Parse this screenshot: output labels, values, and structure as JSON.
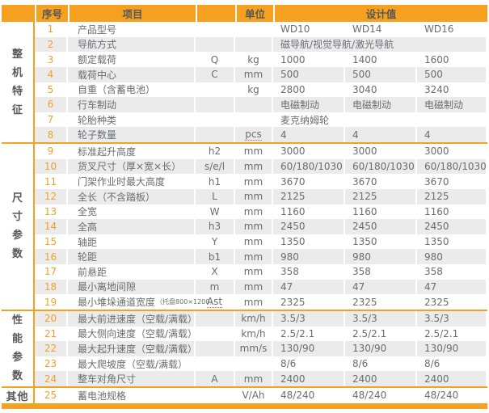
{
  "colors": {
    "accent_orange": "#F5A11F",
    "stripe_gray": "#EBEBEC",
    "text_gray": "#6B6C6E",
    "header_text": "#54555A",
    "row_number_orange": "#F2A024",
    "spellcheck_red": "#E05A4A"
  },
  "header": {
    "no": "序号",
    "item": "项目",
    "symbol": "",
    "unit": "单位",
    "design": "设计值"
  },
  "table": {
    "groups": [
      {
        "label": "整机特征",
        "vertical": true,
        "rows": [
          {
            "no": "1",
            "item": "产品型号",
            "symbol": "",
            "unit": "",
            "values": [
              "WD10",
              "WD14",
              "WD16"
            ]
          },
          {
            "no": "2",
            "item": "导航方式",
            "symbol": "",
            "unit": "",
            "merged": true,
            "values": [
              "磁导航/视觉导航/激光导航"
            ]
          },
          {
            "no": "3",
            "item": "额定载荷",
            "symbol": "Q",
            "unit": "kg",
            "values": [
              "1000",
              "1400",
              "1600"
            ]
          },
          {
            "no": "4",
            "item": "载荷中心",
            "symbol": "C",
            "unit": "mm",
            "values": [
              "500",
              "500",
              "500"
            ]
          },
          {
            "no": "5",
            "item": "自重（含蓄电池）",
            "symbol": "",
            "unit": "kg",
            "values": [
              "2800",
              "3040",
              "3240"
            ]
          },
          {
            "no": "6",
            "item": "行车制动",
            "symbol": "",
            "unit": "",
            "values": [
              "电磁制动",
              "电磁制动",
              "电磁制动"
            ]
          },
          {
            "no": "7",
            "item": "轮胎种类",
            "symbol": "",
            "unit": "",
            "merged": true,
            "values": [
              "麦克纳姆轮"
            ]
          },
          {
            "no": "8",
            "item": "轮子数量",
            "symbol": "",
            "unit": "pcs",
            "unit_mark": true,
            "values": [
              "4",
              "4",
              "4"
            ]
          }
        ]
      },
      {
        "label": "尺寸参数",
        "vertical": true,
        "rows": [
          {
            "no": "9",
            "item": "标准起升高度",
            "symbol": "h2",
            "unit": "mm",
            "values": [
              "3000",
              "3000",
              "3000"
            ]
          },
          {
            "no": "10",
            "item": "货叉尺寸（厚×宽×长）",
            "symbol": "s/e/l",
            "unit": "mm",
            "values": [
              "60/180/1030",
              "60/180/1030",
              "60/180/1030"
            ]
          },
          {
            "no": "11",
            "item": "门架作业时最大高度",
            "symbol": "h1",
            "unit": "mm",
            "values": [
              "3670",
              "3670",
              "3670"
            ]
          },
          {
            "no": "12",
            "item": "全长（不含踏板）",
            "symbol": "L",
            "unit": "mm",
            "values": [
              "2125",
              "2125",
              "2125"
            ]
          },
          {
            "no": "13",
            "item": "全宽",
            "symbol": "W",
            "unit": "mm",
            "values": [
              "1160",
              "1160",
              "1160"
            ]
          },
          {
            "no": "14",
            "item": "全高",
            "symbol": "h3",
            "unit": "mm",
            "values": [
              "2450",
              "2450",
              "2450"
            ]
          },
          {
            "no": "15",
            "item": "轴距",
            "symbol": "Y",
            "unit": "mm",
            "values": [
              "1350",
              "1350",
              "1350"
            ]
          },
          {
            "no": "16",
            "item": "轮距",
            "symbol": "b1",
            "unit": "mm",
            "values": [
              "980",
              "980",
              "980"
            ]
          },
          {
            "no": "17",
            "item": "前悬距",
            "symbol": "X",
            "unit": "mm",
            "values": [
              "358",
              "358",
              "358"
            ]
          },
          {
            "no": "18",
            "item": "最小离地间隙",
            "symbol": "m",
            "unit": "mm",
            "values": [
              "47",
              "47",
              "47"
            ]
          },
          {
            "no": "19",
            "item": "最小堆垛通道宽度",
            "note": "（托盘800×1200）",
            "symbol": "Ast",
            "symbol_mark": true,
            "unit": "mm",
            "values": [
              "2325",
              "2325",
              "2325"
            ]
          }
        ]
      },
      {
        "label": "性能参数",
        "vertical": true,
        "rows": [
          {
            "no": "20",
            "item": "最大前进速度（空载/满载）",
            "symbol": "",
            "unit": "km/h",
            "values": [
              "3.5/3",
              "3.5/3",
              "3.5/3"
            ]
          },
          {
            "no": "21",
            "item": "最大侧向速度（空载/满载）",
            "symbol": "",
            "unit": "km/h",
            "values": [
              "2.5/2.1",
              "2.5/2.1",
              "2.5/2.1"
            ]
          },
          {
            "no": "22",
            "item": "最大起升速度（空载/满载）",
            "symbol": "",
            "unit": "mm/s",
            "values": [
              "130/90",
              "130/90",
              "130/90"
            ]
          },
          {
            "no": "23",
            "item": "最大爬坡度（空载/满载）",
            "symbol": "",
            "unit": "",
            "values": [
              "8/6",
              "8/6",
              "8/6"
            ]
          },
          {
            "no": "24",
            "item": "整车对角尺寸",
            "symbol": "A",
            "unit": "mm",
            "values": [
              "2400",
              "2400",
              "2400"
            ]
          }
        ]
      },
      {
        "label": "其他",
        "vertical": false,
        "rows": [
          {
            "no": "25",
            "item": "蓄电池规格",
            "symbol": "",
            "unit": "V/Ah",
            "values": [
              "48/240",
              "48/240",
              "48/240"
            ]
          }
        ]
      }
    ]
  }
}
